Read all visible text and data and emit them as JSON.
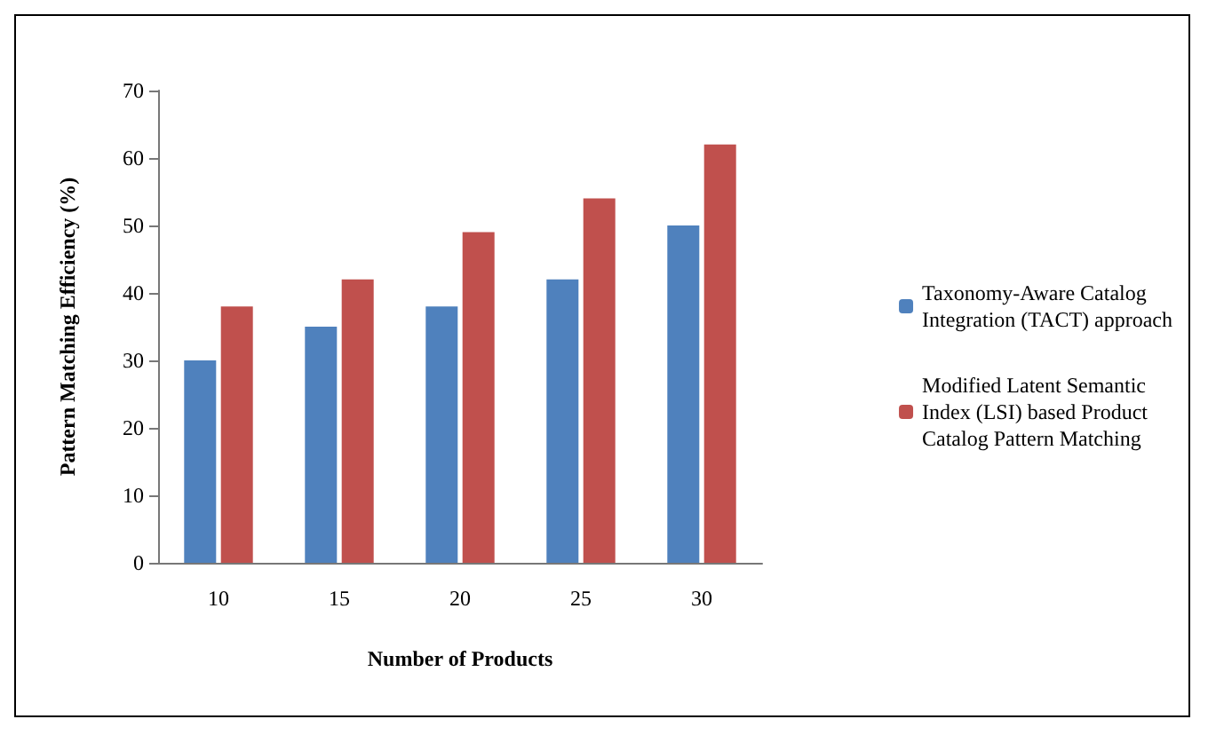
{
  "chart_data": {
    "type": "bar",
    "xlabel": "Number of Products",
    "ylabel": "Pattern Matching Efficiency (%)",
    "categories": [
      "10",
      "15",
      "20",
      "25",
      "30"
    ],
    "series": [
      {
        "name": "Taxonomy-Aware Catalog Integration (TACT) approach",
        "color": "#4f81bd",
        "values": [
          30,
          35,
          38,
          42,
          50
        ]
      },
      {
        "name": "Modified Latent Semantic Index (LSI) based Product Catalog Pattern Matching",
        "color": "#c0504d",
        "values": [
          38,
          42,
          49,
          54,
          62
        ]
      }
    ],
    "ylim": [
      0,
      70
    ],
    "yticks": [
      0,
      10,
      20,
      30,
      40,
      50,
      60,
      70
    ],
    "grid": false,
    "legend": "right"
  }
}
